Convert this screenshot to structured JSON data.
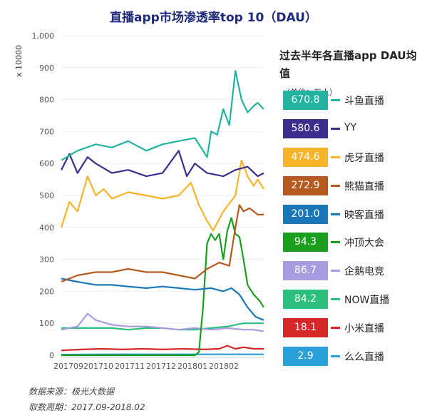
{
  "chart_data": {
    "type": "line",
    "title": "直播app市场渗透率top 10（DAU）",
    "ylabel": "x 10000",
    "ylim": [
      0,
      1000
    ],
    "yticks": [
      "0",
      "100",
      "200",
      "300",
      "400",
      "500",
      "600",
      "700",
      "800",
      "900",
      "1,000"
    ],
    "xticks": [
      "201709",
      "201710",
      "201711",
      "201712",
      "201801",
      "201802"
    ],
    "legend_title": "过去半年各直播app DAU均值",
    "legend_unit": "（单位：万人）",
    "legend_position": "right",
    "series": [
      {
        "name": "斗鱼直播",
        "avg": "670.8",
        "color": "#21b3a0",
        "x": [
          0,
          0.08,
          0.17,
          0.25,
          0.33,
          0.42,
          0.5,
          0.58,
          0.66,
          0.72,
          0.74,
          0.77,
          0.8,
          0.83,
          0.86,
          0.89,
          0.92,
          0.95,
          0.97,
          1.0
        ],
        "values": [
          610,
          640,
          660,
          650,
          670,
          640,
          660,
          670,
          680,
          620,
          700,
          690,
          770,
          720,
          890,
          800,
          760,
          780,
          790,
          770
        ]
      },
      {
        "name": "YY",
        "avg": "580.6",
        "color": "#3b2d8c",
        "x": [
          0,
          0.04,
          0.08,
          0.13,
          0.17,
          0.25,
          0.33,
          0.42,
          0.5,
          0.58,
          0.62,
          0.66,
          0.72,
          0.8,
          0.86,
          0.92,
          0.97,
          1.0
        ],
        "values": [
          580,
          630,
          570,
          620,
          600,
          570,
          580,
          560,
          570,
          640,
          560,
          600,
          570,
          560,
          580,
          590,
          560,
          570
        ]
      },
      {
        "name": "虎牙直播",
        "avg": "474.6",
        "color": "#f6b42a",
        "x": [
          0,
          0.04,
          0.08,
          0.13,
          0.17,
          0.21,
          0.25,
          0.33,
          0.42,
          0.5,
          0.58,
          0.64,
          0.68,
          0.72,
          0.75,
          0.8,
          0.86,
          0.89,
          0.92,
          0.95,
          0.97,
          1.0
        ],
        "values": [
          400,
          480,
          450,
          560,
          500,
          520,
          490,
          510,
          500,
          490,
          500,
          540,
          470,
          420,
          390,
          450,
          500,
          610,
          560,
          530,
          550,
          520
        ]
      },
      {
        "name": "熊猫直播",
        "avg": "272.9",
        "color": "#b55a1e",
        "x": [
          0,
          0.08,
          0.17,
          0.25,
          0.33,
          0.42,
          0.5,
          0.58,
          0.66,
          0.72,
          0.78,
          0.83,
          0.86,
          0.88,
          0.9,
          0.93,
          0.97,
          1.0
        ],
        "values": [
          230,
          250,
          260,
          260,
          270,
          260,
          260,
          250,
          240,
          270,
          290,
          280,
          400,
          470,
          450,
          460,
          440,
          440
        ]
      },
      {
        "name": "映客直播",
        "avg": "201.0",
        "color": "#1a78b8",
        "x": [
          0,
          0.08,
          0.17,
          0.25,
          0.33,
          0.42,
          0.5,
          0.58,
          0.66,
          0.74,
          0.8,
          0.84,
          0.88,
          0.92,
          0.96,
          1.0
        ],
        "values": [
          240,
          230,
          220,
          220,
          215,
          210,
          215,
          210,
          205,
          210,
          200,
          210,
          190,
          150,
          120,
          110
        ]
      },
      {
        "name": "冲顶大会",
        "avg": "94.3",
        "color": "#1aa01e",
        "x": [
          0,
          0.66,
          0.68,
          0.7,
          0.72,
          0.74,
          0.76,
          0.78,
          0.8,
          0.82,
          0.84,
          0.86,
          0.88,
          0.9,
          0.92,
          0.95,
          0.98,
          1.0
        ],
        "values": [
          0,
          0,
          10,
          150,
          350,
          380,
          360,
          380,
          300,
          390,
          430,
          380,
          370,
          300,
          220,
          190,
          170,
          150
        ]
      },
      {
        "name": "企鹅电竞",
        "avg": "86.7",
        "color": "#a99be0",
        "x": [
          0,
          0.08,
          0.13,
          0.17,
          0.25,
          0.33,
          0.42,
          0.5,
          0.58,
          0.66,
          0.74,
          0.82,
          0.9,
          0.95,
          1.0
        ],
        "values": [
          80,
          90,
          130,
          110,
          95,
          90,
          90,
          85,
          80,
          85,
          80,
          85,
          80,
          80,
          75
        ]
      },
      {
        "name": "NOW直播",
        "avg": "84.2",
        "color": "#2bbf7e",
        "x": [
          0,
          0.08,
          0.17,
          0.25,
          0.33,
          0.42,
          0.5,
          0.58,
          0.66,
          0.74,
          0.82,
          0.9,
          1.0
        ],
        "values": [
          85,
          85,
          85,
          85,
          80,
          85,
          85,
          80,
          80,
          85,
          90,
          100,
          100
        ]
      },
      {
        "name": "小米直播",
        "avg": "18.1",
        "color": "#d62828",
        "x": [
          0,
          0.1,
          0.2,
          0.3,
          0.4,
          0.5,
          0.6,
          0.7,
          0.78,
          0.82,
          0.86,
          0.9,
          0.95,
          1.0
        ],
        "values": [
          15,
          18,
          20,
          18,
          20,
          18,
          20,
          18,
          20,
          30,
          20,
          25,
          20,
          20
        ]
      },
      {
        "name": "么么直播",
        "avg": "2.9",
        "color": "#2a9fd8",
        "x": [
          0,
          0.25,
          0.5,
          0.75,
          1.0
        ],
        "values": [
          2,
          3,
          3,
          3,
          3
        ]
      }
    ],
    "source_lines": [
      "数据来源：极光大数据",
      "取数周期：2017.09-2018.02"
    ]
  }
}
